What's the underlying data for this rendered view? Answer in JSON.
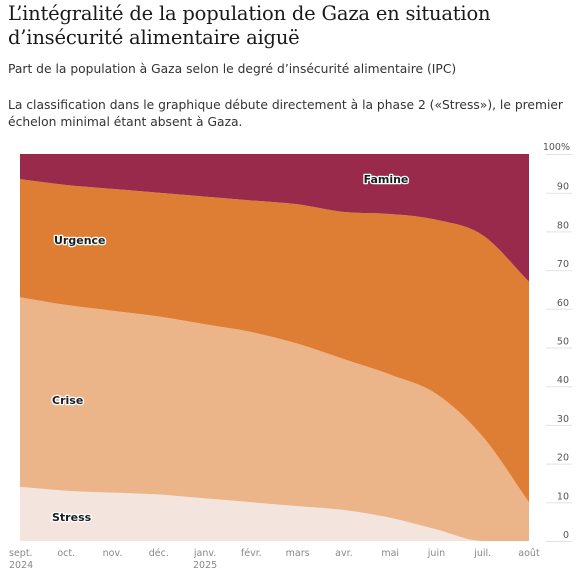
{
  "header": {
    "title": "L’intégralité de la population de Gaza en situation d’insécurité alimentaire aiguë",
    "subtitle": "Part de la population à Gaza selon le degré d’insécurité alimentaire (IPC)",
    "note": "La classification dans le graphique débute directement à la phase 2 («Stress»), le premier échelon minimal étant absent à Gaza."
  },
  "chart_data": {
    "type": "area",
    "stacking": "cumulative-percent",
    "x": [
      "sept. 2024",
      "oct.",
      "nov.",
      "déc.",
      "janv. 2025",
      "févr.",
      "mars",
      "avr.",
      "mai",
      "juin",
      "juil.",
      "août"
    ],
    "x_tick_labels": [
      {
        "line1": "sept.",
        "line2": "2024"
      },
      {
        "line1": "oct.",
        "line2": ""
      },
      {
        "line1": "nov.",
        "line2": ""
      },
      {
        "line1": "déc.",
        "line2": ""
      },
      {
        "line1": "janv.",
        "line2": "2025"
      },
      {
        "line1": "févr.",
        "line2": ""
      },
      {
        "line1": "mars",
        "line2": ""
      },
      {
        "line1": "avr.",
        "line2": ""
      },
      {
        "line1": "mai",
        "line2": ""
      },
      {
        "line1": "juin",
        "line2": ""
      },
      {
        "line1": "juil.",
        "line2": ""
      },
      {
        "line1": "août",
        "line2": ""
      }
    ],
    "series": [
      {
        "name": "Stress",
        "color": "#f3e4dd",
        "values": [
          14,
          13,
          12.5,
          12,
          11,
          10,
          9,
          8,
          6,
          3,
          0,
          0
        ]
      },
      {
        "name": "Crise",
        "color": "#ebb589",
        "values": [
          49,
          48,
          47,
          46,
          45,
          44,
          42,
          39,
          37,
          35,
          27,
          10
        ]
      },
      {
        "name": "Urgence",
        "color": "#de7e35",
        "values": [
          30.5,
          31,
          31.5,
          32,
          33,
          34,
          36,
          38,
          41.5,
          45,
          52,
          57
        ]
      },
      {
        "name": "Famine",
        "color": "#9a2a4c",
        "values": [
          6.5,
          8,
          9,
          10,
          11,
          12,
          13,
          15,
          15.5,
          17,
          21,
          33
        ]
      }
    ],
    "ylim": [
      0,
      100
    ],
    "y_ticks": [
      0,
      10,
      20,
      30,
      40,
      50,
      60,
      70,
      80,
      90
    ],
    "y_top_label": "100%",
    "grid": true,
    "legend": "inline"
  }
}
